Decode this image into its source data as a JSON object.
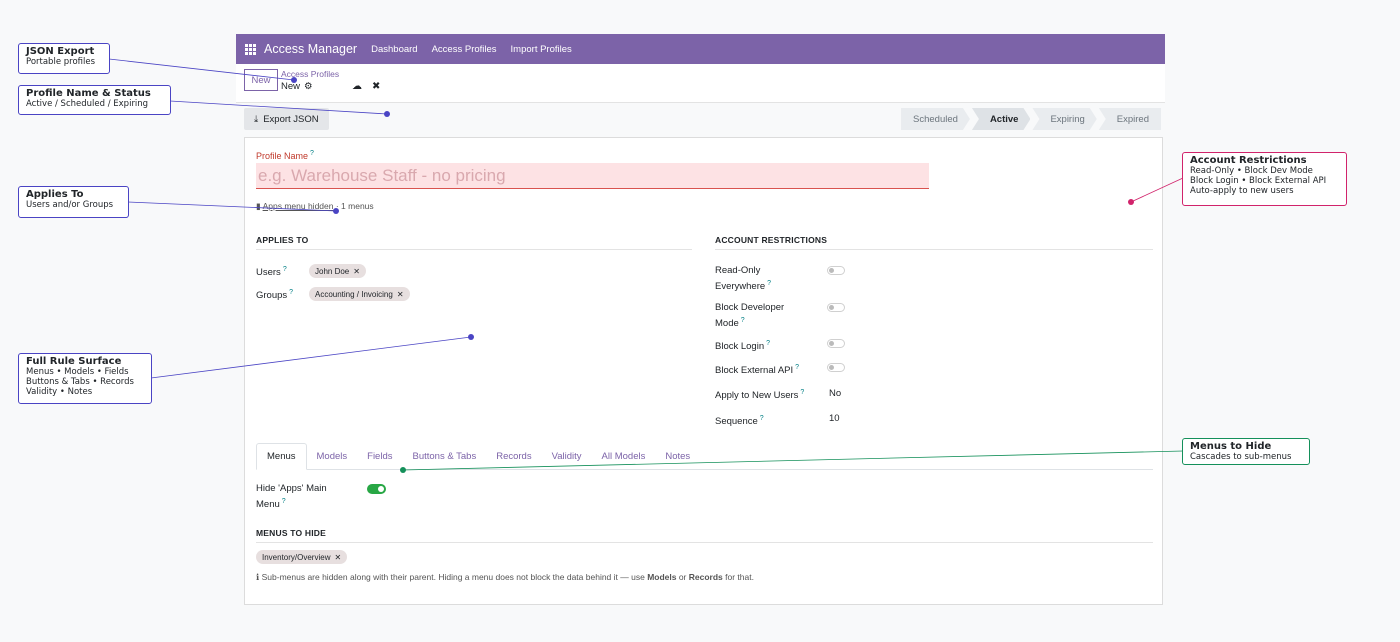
{
  "navbar": {
    "brand": "Access Manager",
    "links": [
      "Dashboard",
      "Access Profiles",
      "Import Profiles"
    ]
  },
  "control": {
    "new_label": "New",
    "breadcrumb": "Access Profiles",
    "record_title": "New"
  },
  "toolbar": {
    "export_label": "Export JSON"
  },
  "statusbar": {
    "stages": [
      "Scheduled",
      "Active",
      "Expiring",
      "Expired"
    ],
    "active": "Active"
  },
  "form": {
    "profile_name_label": "Profile Name",
    "profile_name_placeholder": "e.g. Warehouse Staff - no pricing",
    "info_hidden": "Apps menu hidden",
    "info_menus": "· 1 menus",
    "applies_to": {
      "heading": "APPLIES TO",
      "users_label": "Users",
      "users": [
        "John Doe"
      ],
      "groups_label": "Groups",
      "groups": [
        "Accounting / Invoicing"
      ]
    },
    "account_restrictions": {
      "heading": "ACCOUNT RESTRICTIONS",
      "read_only_l1": "Read-Only",
      "read_only_l2": "Everywhere",
      "block_dev_l1": "Block Developer",
      "block_dev_l2": "Mode",
      "block_login": "Block Login",
      "block_api": "Block External API",
      "apply_new_label": "Apply to New Users",
      "apply_new_value": "No",
      "sequence_label": "Sequence",
      "sequence_value": "10"
    },
    "tabs": [
      "Menus",
      "Models",
      "Fields",
      "Buttons & Tabs",
      "Records",
      "Validity",
      "All Models",
      "Notes"
    ],
    "active_tab": "Menus",
    "menus": {
      "hide_apps_l1": "Hide 'Apps' Main",
      "hide_apps_l2": "Menu",
      "heading": "MENUS TO HIDE",
      "items": [
        "Inventory/Overview"
      ],
      "hint_a": "Sub-menus are hidden along with their parent. Hiding a menu does not block the data behind it — use ",
      "hint_models": "Models",
      "hint_or": " or ",
      "hint_records": "Records",
      "hint_end": " for that."
    }
  },
  "annotations": {
    "json_export": {
      "title": "JSON Export",
      "sub": "Portable profiles"
    },
    "profile_name": {
      "title": "Profile Name & Status",
      "sub": "Active / Scheduled / Expiring"
    },
    "applies_to": {
      "title": "Applies To",
      "sub": "Users and/or Groups"
    },
    "full_rule": {
      "title": "Full Rule Surface",
      "l1": "Menus • Models • Fields",
      "l2": "Buttons & Tabs • Records",
      "l3": "Validity • Notes"
    },
    "account_restrictions": {
      "title": "Account Restrictions",
      "l1": "Read-Only • Block Dev Mode",
      "l2": "Block Login • Block External API",
      "l3": "Auto-apply to new users"
    },
    "menus_to_hide": {
      "title": "Menus to Hide",
      "sub": "Cascades to sub-menus"
    }
  },
  "colors": {
    "brand": "#7c63a8",
    "annotation_blue": "#4a44c4",
    "annotation_pink": "#d1236b",
    "annotation_green": "#14905a",
    "toggle_on": "#28a745"
  }
}
